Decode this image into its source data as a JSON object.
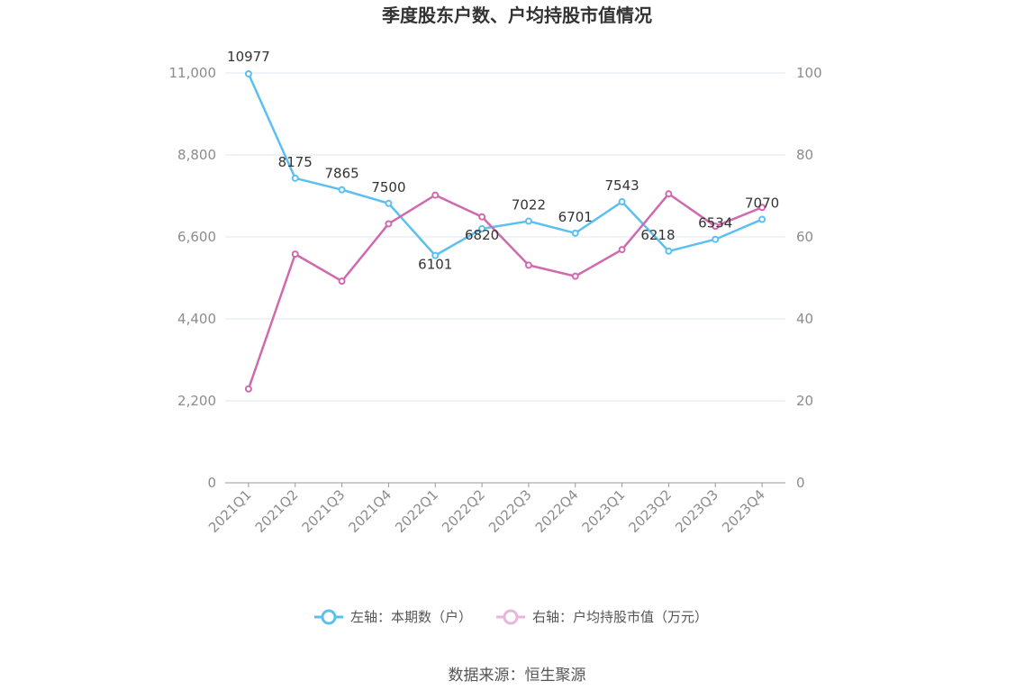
{
  "chart_data": {
    "type": "line",
    "title": "季度股东户数、户均持股市值情况",
    "categories": [
      "2021Q1",
      "2021Q2",
      "2021Q3",
      "2021Q4",
      "2022Q1",
      "2022Q2",
      "2022Q3",
      "2022Q4",
      "2023Q1",
      "2023Q2",
      "2023Q3",
      "2023Q4"
    ],
    "left_axis": {
      "ylim": [
        0,
        11000
      ],
      "ticks": [
        0,
        2200,
        4400,
        6600,
        8800,
        11000
      ],
      "tick_labels": [
        "0",
        "2,200",
        "4,400",
        "6,600",
        "8,800",
        "11,000"
      ]
    },
    "right_axis": {
      "ylim": [
        0,
        100
      ],
      "ticks": [
        0,
        20,
        40,
        60,
        80,
        100
      ],
      "tick_labels": [
        "0",
        "20",
        "40",
        "60",
        "80",
        "100"
      ]
    },
    "series": [
      {
        "name": "左轴：本期数（户）",
        "axis": "left",
        "color": "#5bc0f0",
        "values": [
          10977,
          8175,
          7865,
          7500,
          6101,
          6820,
          7022,
          6701,
          7543,
          6218,
          6534,
          7070
        ],
        "labels": [
          "10977",
          "8175",
          "7865",
          "7500",
          "6101",
          "6820",
          "7022",
          "6701",
          "7543",
          "6218",
          "6534",
          "7070"
        ]
      },
      {
        "name": "右轴：户均持股市值（万元）",
        "axis": "right",
        "color": "#d06aaf",
        "values": [
          22.9,
          55.8,
          49.2,
          63.2,
          70.2,
          64.9,
          53.1,
          50.4,
          56.9,
          70.5,
          62.6,
          67.2
        ]
      }
    ],
    "grid": true,
    "legend_position": "bottom"
  },
  "source": "数据来源：恒生聚源"
}
